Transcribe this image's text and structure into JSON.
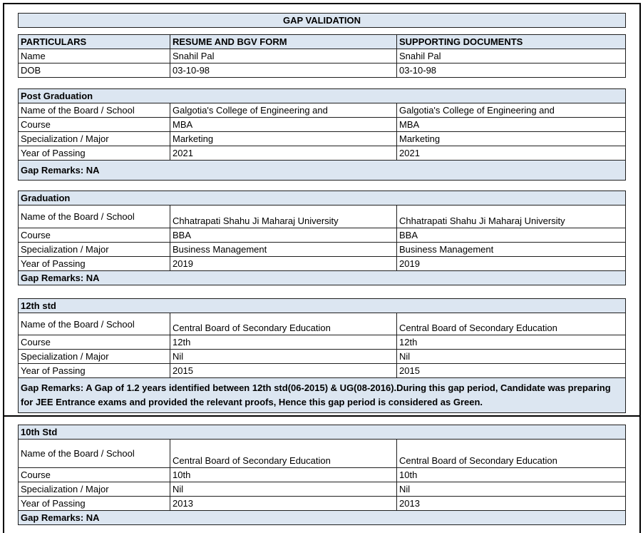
{
  "title": "GAP VALIDATION",
  "header": {
    "columns": [
      "PARTICULARS",
      "RESUME AND BGV FORM",
      "SUPPORTING DOCUMENTS"
    ],
    "rows": [
      [
        "Name",
        "Snahil Pal",
        "Snahil Pal"
      ],
      [
        "DOB",
        "03-10-98",
        "03-10-98"
      ]
    ]
  },
  "sections": [
    {
      "title": "Post Graduation",
      "rows": [
        [
          "Name of the Board / School",
          "Galgotia's College of Engineering and",
          "Galgotia's College of Engineering and"
        ],
        [
          "Course",
          "MBA",
          "MBA"
        ],
        [
          "Specialization / Major",
          "Marketing",
          "Marketing"
        ],
        [
          "Year of Passing",
          "2021",
          "2021"
        ]
      ],
      "remarks": "Gap Remarks: NA"
    },
    {
      "title": "Graduation",
      "rows": [
        [
          "Name of the Board / School",
          "Chhatrapati Shahu Ji Maharaj University",
          "Chhatrapati Shahu Ji Maharaj University"
        ],
        [
          "Course",
          "BBA",
          "BBA"
        ],
        [
          "Specialization / Major",
          "Business Management",
          "Business Management"
        ],
        [
          "Year of Passing",
          "2019",
          "2019"
        ]
      ],
      "remarks": "Gap Remarks: NA"
    },
    {
      "title": "12th std",
      "rows": [
        [
          "Name of the Board / School",
          "Central Board of Secondary Education",
          "Central Board of Secondary Education"
        ],
        [
          "Course",
          "12th",
          "12th"
        ],
        [
          "Specialization / Major",
          "Nil",
          "Nil"
        ],
        [
          "Year of Passing",
          "2015",
          "2015"
        ]
      ],
      "remarks": "Gap Remarks: A Gap of 1.2 years identified between 12th std(06-2015) & UG(08-2016).During this gap period, Candidate was preparing for JEE Entrance exams and provided the relevant proofs, Hence this gap period is considered as Green."
    },
    {
      "title": "10th Std",
      "rows": [
        [
          "Name of the Board / School",
          "Central Board of Secondary Education",
          "Central Board of Secondary Education"
        ],
        [
          "Course",
          "10th",
          "10th"
        ],
        [
          "Specialization / Major",
          "Nil",
          "Nil"
        ],
        [
          "Year of Passing",
          "2013",
          "2013"
        ]
      ],
      "remarks": "Gap Remarks: NA"
    }
  ]
}
